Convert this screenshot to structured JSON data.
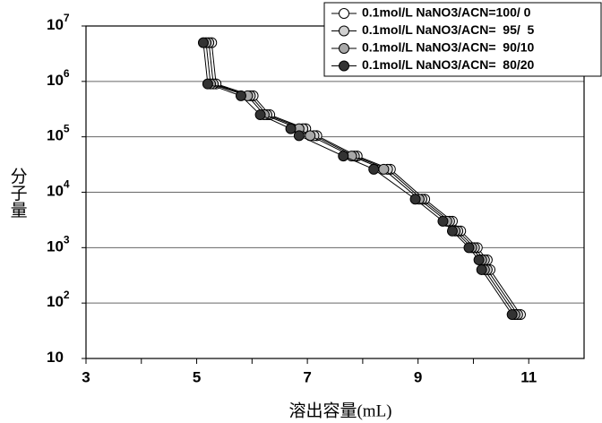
{
  "chart_data": {
    "type": "line",
    "xlabel": "溶出容量(mL)",
    "ylabel": "分子量",
    "log_y": true,
    "grid": true,
    "xlim": [
      3,
      12
    ],
    "xticks": [
      3,
      5,
      7,
      9,
      11
    ],
    "x_minor_ticks": [
      4,
      6,
      8,
      10
    ],
    "ylim": [
      10,
      10000000
    ],
    "yticks": [
      10,
      {
        "value": 100,
        "label": "10",
        "exponent": "2"
      },
      {
        "value": 1000,
        "label": "10",
        "exponent": "3"
      },
      {
        "value": 10000,
        "label": "10",
        "exponent": "4"
      },
      {
        "value": 100000,
        "label": "10",
        "exponent": "5"
      },
      {
        "value": 1000000,
        "label": "10",
        "exponent": "6"
      },
      {
        "value": 10000000,
        "label": "10",
        "exponent": "7"
      }
    ],
    "legend": "top-right",
    "series": [
      {
        "name": "0.1mol/L NaNO3/ACN=100/ 0",
        "color": "#ffffff",
        "x": [
          5.27,
          5.35,
          6.02,
          6.32,
          6.97,
          7.17,
          7.9,
          8.5,
          9.12,
          9.62,
          9.77,
          10.07,
          10.25,
          10.3,
          10.85
        ],
        "values": [
          5000000,
          900000,
          550000,
          250000,
          140000,
          105000,
          45000,
          26000,
          7500,
          3000,
          2000,
          1000,
          600,
          400,
          62
        ]
      },
      {
        "name": "0.1mol/L NaNO3/ACN=  95/  5",
        "color": "#d0d0d0",
        "x": [
          5.22,
          5.3,
          5.97,
          6.27,
          6.92,
          7.12,
          7.85,
          8.45,
          9.07,
          9.57,
          9.72,
          10.02,
          10.2,
          10.25,
          10.8
        ],
        "values": [
          5000000,
          900000,
          550000,
          250000,
          140000,
          105000,
          45000,
          26000,
          7500,
          3000,
          2000,
          1000,
          600,
          400,
          62
        ]
      },
      {
        "name": "0.1mol/L NaNO3/ACN=  90/10",
        "color": "#a8a8a8",
        "x": [
          5.17,
          5.25,
          5.92,
          6.22,
          6.85,
          7.05,
          7.8,
          8.38,
          9.02,
          9.52,
          9.67,
          9.97,
          10.15,
          10.2,
          10.75
        ],
        "values": [
          5000000,
          900000,
          550000,
          250000,
          140000,
          105000,
          45000,
          26000,
          7500,
          3000,
          2000,
          1000,
          600,
          400,
          62
        ]
      },
      {
        "name": "0.1mol/L NaNO3/ACN=  80/20",
        "color": "#333333",
        "x": [
          5.12,
          5.2,
          5.8,
          6.15,
          6.7,
          6.85,
          7.65,
          8.2,
          8.95,
          9.45,
          9.62,
          9.92,
          10.1,
          10.15,
          10.7
        ],
        "values": [
          5000000,
          900000,
          550000,
          250000,
          140000,
          105000,
          45000,
          26000,
          7500,
          3000,
          2000,
          1000,
          600,
          400,
          62
        ]
      }
    ]
  }
}
